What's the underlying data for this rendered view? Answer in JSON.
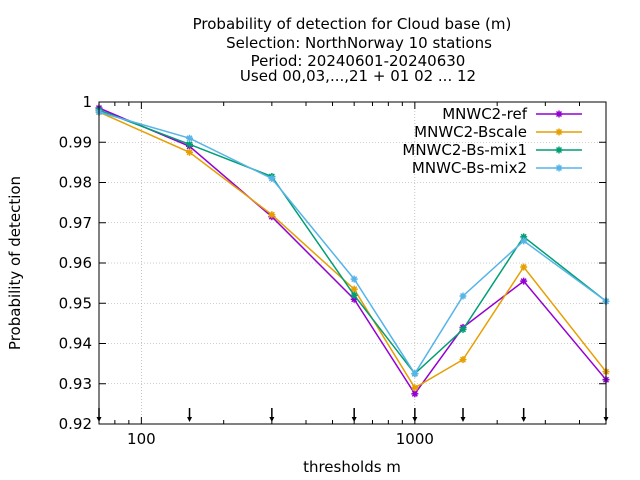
{
  "chart_data": {
    "type": "line",
    "title_lines": [
      "Probability of detection  for Cloud base (m)",
      "Selection: NorthNorway     10 stations",
      "Period: 20240601-20240630",
      "Used 00,03,...,21 + 01 02 ... 12"
    ],
    "xlabel": "thresholds m",
    "ylabel": "Probability of detection",
    "x_scale": "log",
    "xlim": [
      70,
      5000
    ],
    "ylim": [
      0.92,
      1.0
    ],
    "grid": true,
    "legend_position": "top-right",
    "x_ticks": [
      {
        "value": 100,
        "label": "100"
      },
      {
        "value": 1000,
        "label": "1000"
      }
    ],
    "y_ticks": [
      {
        "value": 0.92,
        "label": "0.92"
      },
      {
        "value": 0.93,
        "label": "0.93"
      },
      {
        "value": 0.94,
        "label": "0.94"
      },
      {
        "value": 0.95,
        "label": "0.95"
      },
      {
        "value": 0.96,
        "label": "0.96"
      },
      {
        "value": 0.97,
        "label": "0.97"
      },
      {
        "value": 0.98,
        "label": "0.98"
      },
      {
        "value": 0.99,
        "label": "0.99"
      },
      {
        "value": 1.0,
        "label": "1"
      }
    ],
    "x": [
      70,
      150,
      300,
      600,
      1000,
      1500,
      2500,
      5000
    ],
    "threshold_markers": [
      70,
      150,
      300,
      600,
      1000,
      1500,
      2500,
      5000
    ],
    "series": [
      {
        "name": "MNWC2-ref",
        "color": "#9400d3",
        "values": [
          0.9985,
          0.989,
          0.9715,
          0.951,
          0.9275,
          0.944,
          0.9555,
          0.931
        ]
      },
      {
        "name": "MNWC2-Bscale",
        "color": "#e69f00",
        "values": [
          0.9975,
          0.9875,
          0.972,
          0.9535,
          0.929,
          0.936,
          0.959,
          0.933
        ]
      },
      {
        "name": "MNWC2-Bs-mix1",
        "color": "#009e73",
        "values": [
          0.998,
          0.9895,
          0.9815,
          0.952,
          0.9325,
          0.9435,
          0.9665,
          0.9505
        ]
      },
      {
        "name": "MNWC-Bs-mix2",
        "color": "#56b4e9",
        "values": [
          0.9975,
          0.991,
          0.981,
          0.956,
          0.9325,
          0.9518,
          0.9655,
          0.9505
        ]
      }
    ]
  }
}
